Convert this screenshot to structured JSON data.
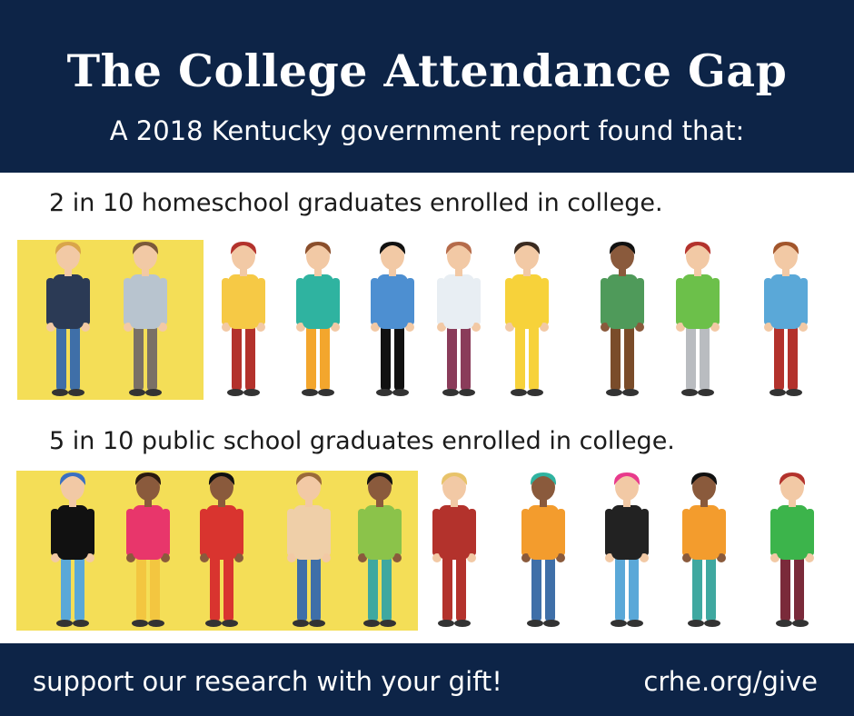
{
  "header": {
    "title": "The College Attendance Gap",
    "subtitle": "A 2018 Kentucky government report found that:"
  },
  "rows": [
    {
      "label": "2 in 10 homeschool graduates enrolled in college.",
      "enrolled": 2,
      "total": 10
    },
    {
      "label": "5 in 10 public school graduates enrolled in college.",
      "enrolled": 5,
      "total": 10
    }
  ],
  "footer": {
    "cta": "support our research with your gift!",
    "url": "crhe.org/give"
  },
  "colors": {
    "navy": "#0d2447",
    "highlight": "#f4de57",
    "skin": "#f2c9a5",
    "skin_dark": "#8a5a3c"
  },
  "icons": [
    "person-illustration"
  ]
}
